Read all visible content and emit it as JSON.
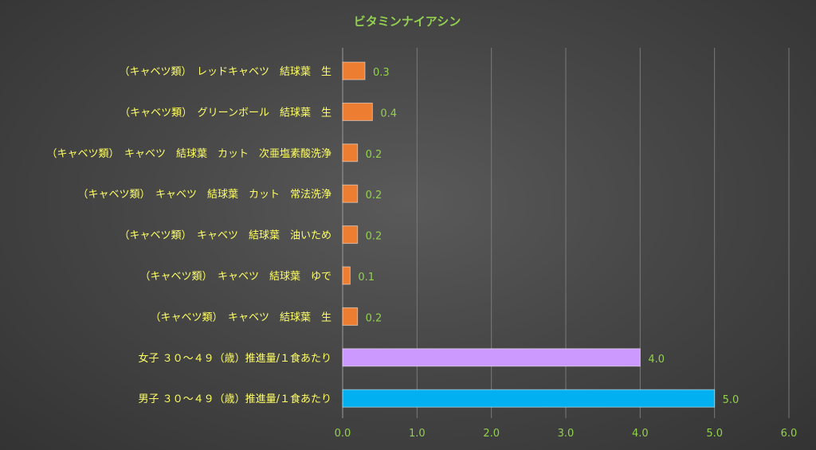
{
  "chart_data": {
    "type": "bar",
    "orientation": "horizontal",
    "title": "ビタミンナイアシン",
    "xlabel": "",
    "ylabel": "",
    "xlim": [
      0,
      6
    ],
    "ticks": [
      "0.0",
      "1.0",
      "2.0",
      "3.0",
      "4.0",
      "5.0",
      "6.0"
    ],
    "grid": true,
    "legend": "none",
    "categories": [
      "（キャベツ類）　レッドキャベツ　結球葉　生",
      "（キャベツ類）　グリーンボール　結球葉　生",
      "（キャベツ類）　キャベツ　結球葉　カット　次亜塩素酸洗浄",
      "（キャベツ類）　キャベツ　結球葉　カット　常法洗浄",
      "（キャベツ類）　キャベツ　結球葉　油いため",
      "（キャベツ類）　キャベツ　結球葉　ゆで",
      "（キャベツ類）　キャベツ　結球葉　生",
      "女子 ３０～４９（歳）推進量/１食あたり",
      "男子 ３０～４９（歳）推進量/１食あたり"
    ],
    "values": [
      0.3,
      0.4,
      0.2,
      0.2,
      0.2,
      0.1,
      0.2,
      4.0,
      5.0
    ],
    "value_labels": [
      "0.3",
      "0.4",
      "0.2",
      "0.2",
      "0.2",
      "0.1",
      "0.2",
      "4.0",
      "5.0"
    ],
    "bar_colors": [
      "#ed7d31",
      "#ed7d31",
      "#ed7d31",
      "#ed7d31",
      "#ed7d31",
      "#ed7d31",
      "#ed7d31",
      "#cc99ff",
      "#00b0f0"
    ],
    "colors": {
      "category_text": "#ffff66",
      "value_text": "#92d050",
      "title_text": "#92d050"
    }
  }
}
